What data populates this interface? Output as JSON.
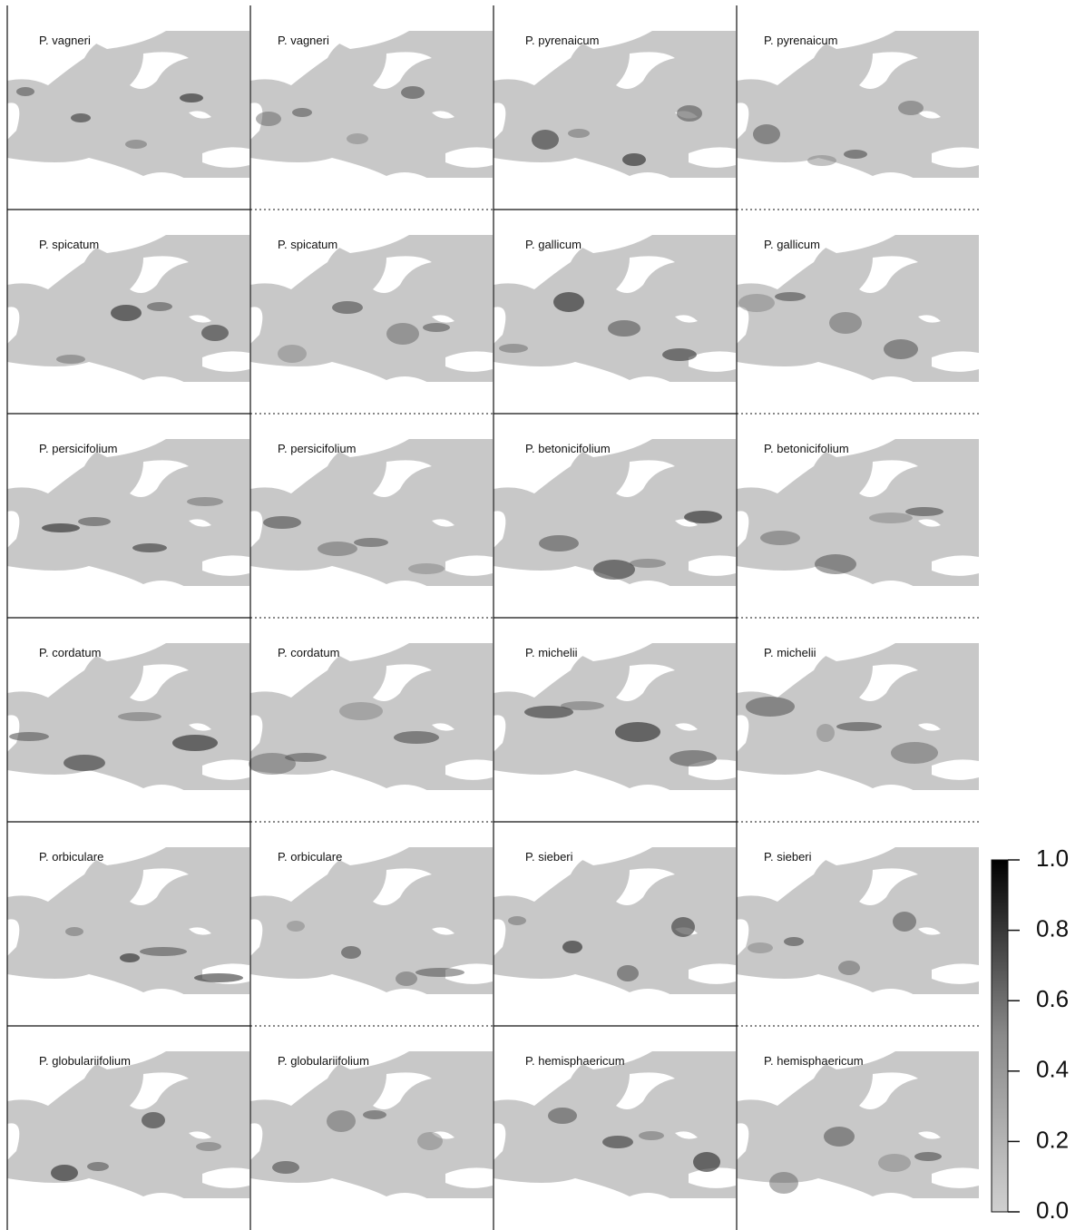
{
  "panels": [
    [
      "P. vagneri",
      "P. vagneri",
      "P. pyrenaicum",
      "P. pyrenaicum"
    ],
    [
      "P. spicatum",
      "P. spicatum",
      "P. gallicum",
      "P. gallicum"
    ],
    [
      "P. persicifolium",
      "P. persicifolium",
      "P. betonicifolium",
      "P. betonicifolium"
    ],
    [
      "P. cordatum",
      "P. cordatum",
      "P. michelii",
      "P. michelii"
    ],
    [
      "P. orbiculare",
      "P. orbiculare",
      "P. sieberi",
      "P. sieberi"
    ],
    [
      "P. globulariifolium",
      "P. globulariifolium",
      "P. hemisphaericum",
      "P. hemisphaericum"
    ]
  ],
  "colorbar": {
    "lim": [
      0,
      1
    ],
    "ticks": [
      {
        "value": 0,
        "label": "0.0"
      },
      {
        "value": 0.2,
        "label": "0.2"
      },
      {
        "value": 0.4,
        "label": "0.4"
      },
      {
        "value": 0.6,
        "label": "0.6"
      },
      {
        "value": 0.8,
        "label": "0.8"
      },
      {
        "value": 1,
        "label": "1.0"
      }
    ]
  }
}
